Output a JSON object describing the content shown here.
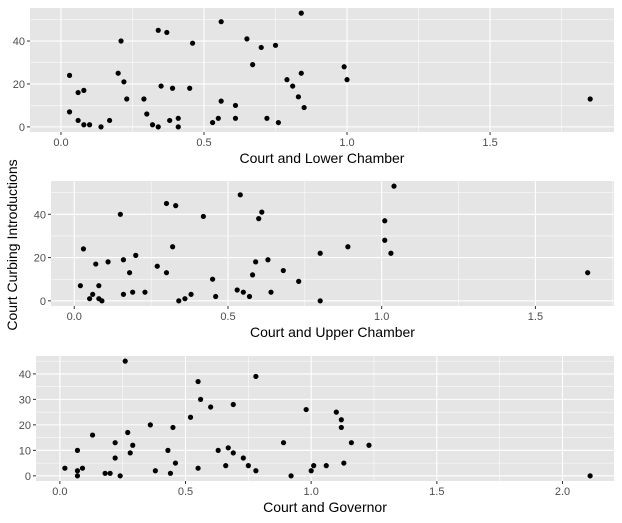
{
  "chart_data": {
    "shared_ylabel": "Court Curbing Introductions",
    "style": {
      "panel_bg": "#e5e5e5",
      "grid_color": "#ffffff",
      "point_color": "#000000"
    },
    "panels": [
      {
        "type": "scatter",
        "xlabel": "Court and Lower Chamber",
        "xlim": [
          0,
          1.85
        ],
        "ylim": [
          0,
          53
        ],
        "x_ticks": [
          0.0,
          0.5,
          1.0,
          1.5
        ],
        "x_tick_labels": [
          "0.0",
          "0.5",
          "1.0",
          "1.5"
        ],
        "y_ticks": [
          0,
          20,
          40
        ],
        "y_tick_labels": [
          "0",
          "20",
          "40"
        ],
        "points": [
          [
            0.03,
            24
          ],
          [
            0.03,
            7
          ],
          [
            0.06,
            16
          ],
          [
            0.06,
            3
          ],
          [
            0.08,
            17
          ],
          [
            0.08,
            1
          ],
          [
            0.1,
            1
          ],
          [
            0.14,
            0
          ],
          [
            0.17,
            3
          ],
          [
            0.2,
            25
          ],
          [
            0.21,
            40
          ],
          [
            0.22,
            21
          ],
          [
            0.23,
            13
          ],
          [
            0.29,
            13
          ],
          [
            0.3,
            6
          ],
          [
            0.32,
            1
          ],
          [
            0.34,
            45
          ],
          [
            0.34,
            0
          ],
          [
            0.35,
            19
          ],
          [
            0.37,
            44
          ],
          [
            0.38,
            3
          ],
          [
            0.39,
            18
          ],
          [
            0.41,
            4
          ],
          [
            0.41,
            0
          ],
          [
            0.45,
            18
          ],
          [
            0.46,
            39
          ],
          [
            0.53,
            2
          ],
          [
            0.55,
            4
          ],
          [
            0.56,
            12
          ],
          [
            0.56,
            49
          ],
          [
            0.61,
            10
          ],
          [
            0.61,
            4
          ],
          [
            0.65,
            41
          ],
          [
            0.67,
            29
          ],
          [
            0.7,
            37
          ],
          [
            0.72,
            4
          ],
          [
            0.75,
            38
          ],
          [
            0.76,
            2
          ],
          [
            0.79,
            22
          ],
          [
            0.81,
            19
          ],
          [
            0.83,
            14
          ],
          [
            0.84,
            25
          ],
          [
            0.84,
            53
          ],
          [
            0.85,
            9
          ],
          [
            0.99,
            28
          ],
          [
            1.0,
            22
          ],
          [
            1.85,
            13
          ]
        ]
      },
      {
        "type": "scatter",
        "xlabel": "Court and Upper Chamber",
        "xlim": [
          0,
          1.68
        ],
        "ylim": [
          0,
          53
        ],
        "x_ticks": [
          0.0,
          0.5,
          1.0,
          1.5
        ],
        "x_tick_labels": [
          "0.0",
          "0.5",
          "1.0",
          "1.5"
        ],
        "y_ticks": [
          0,
          20,
          40
        ],
        "y_tick_labels": [
          "0",
          "20",
          "40"
        ],
        "points": [
          [
            0.02,
            7
          ],
          [
            0.03,
            24
          ],
          [
            0.05,
            1
          ],
          [
            0.06,
            3
          ],
          [
            0.07,
            17
          ],
          [
            0.08,
            1
          ],
          [
            0.08,
            7
          ],
          [
            0.09,
            0
          ],
          [
            0.11,
            18
          ],
          [
            0.15,
            40
          ],
          [
            0.16,
            3
          ],
          [
            0.16,
            19
          ],
          [
            0.18,
            13
          ],
          [
            0.19,
            4
          ],
          [
            0.2,
            21
          ],
          [
            0.23,
            4
          ],
          [
            0.27,
            16
          ],
          [
            0.3,
            13
          ],
          [
            0.3,
            45
          ],
          [
            0.32,
            25
          ],
          [
            0.33,
            44
          ],
          [
            0.34,
            0
          ],
          [
            0.36,
            1
          ],
          [
            0.38,
            3
          ],
          [
            0.42,
            39
          ],
          [
            0.45,
            10
          ],
          [
            0.46,
            2
          ],
          [
            0.53,
            5
          ],
          [
            0.54,
            49
          ],
          [
            0.55,
            4
          ],
          [
            0.57,
            2
          ],
          [
            0.58,
            12
          ],
          [
            0.59,
            18
          ],
          [
            0.6,
            38
          ],
          [
            0.61,
            41
          ],
          [
            0.63,
            19
          ],
          [
            0.64,
            4
          ],
          [
            0.68,
            14
          ],
          [
            0.73,
            9
          ],
          [
            0.8,
            0
          ],
          [
            0.8,
            22
          ],
          [
            0.89,
            25
          ],
          [
            1.01,
            37
          ],
          [
            1.01,
            28
          ],
          [
            1.03,
            22
          ],
          [
            1.04,
            53
          ],
          [
            1.67,
            13
          ]
        ]
      },
      {
        "type": "scatter",
        "xlabel": "Court and Governor",
        "xlim": [
          0,
          2.11
        ],
        "ylim": [
          0,
          45
        ],
        "x_ticks": [
          0.0,
          0.5,
          1.0,
          1.5,
          2.0
        ],
        "x_tick_labels": [
          "0.0",
          "0.5",
          "1.0",
          "1.5",
          "2.0"
        ],
        "y_ticks": [
          0,
          10,
          20,
          30,
          40
        ],
        "y_tick_labels": [
          "0",
          "10",
          "20",
          "30",
          "40"
        ],
        "points": [
          [
            0.02,
            3
          ],
          [
            0.07,
            2
          ],
          [
            0.07,
            0
          ],
          [
            0.07,
            10
          ],
          [
            0.09,
            3
          ],
          [
            0.13,
            16
          ],
          [
            0.18,
            1
          ],
          [
            0.2,
            1
          ],
          [
            0.22,
            13
          ],
          [
            0.22,
            7
          ],
          [
            0.24,
            0
          ],
          [
            0.26,
            45
          ],
          [
            0.27,
            17
          ],
          [
            0.28,
            9
          ],
          [
            0.29,
            12
          ],
          [
            0.36,
            20
          ],
          [
            0.38,
            2
          ],
          [
            0.43,
            10
          ],
          [
            0.44,
            1
          ],
          [
            0.45,
            19
          ],
          [
            0.46,
            5
          ],
          [
            0.52,
            23
          ],
          [
            0.55,
            37
          ],
          [
            0.55,
            3
          ],
          [
            0.56,
            30
          ],
          [
            0.6,
            27
          ],
          [
            0.63,
            10
          ],
          [
            0.66,
            4
          ],
          [
            0.67,
            11
          ],
          [
            0.69,
            28
          ],
          [
            0.69,
            9
          ],
          [
            0.73,
            7
          ],
          [
            0.75,
            4
          ],
          [
            0.78,
            39
          ],
          [
            0.78,
            2
          ],
          [
            0.89,
            13
          ],
          [
            0.92,
            0
          ],
          [
            0.98,
            26
          ],
          [
            1.0,
            2
          ],
          [
            1.01,
            4
          ],
          [
            1.06,
            4
          ],
          [
            1.1,
            25
          ],
          [
            1.12,
            22
          ],
          [
            1.12,
            19
          ],
          [
            1.13,
            5
          ],
          [
            1.16,
            13
          ],
          [
            1.23,
            12
          ],
          [
            2.11,
            0
          ]
        ]
      }
    ]
  }
}
